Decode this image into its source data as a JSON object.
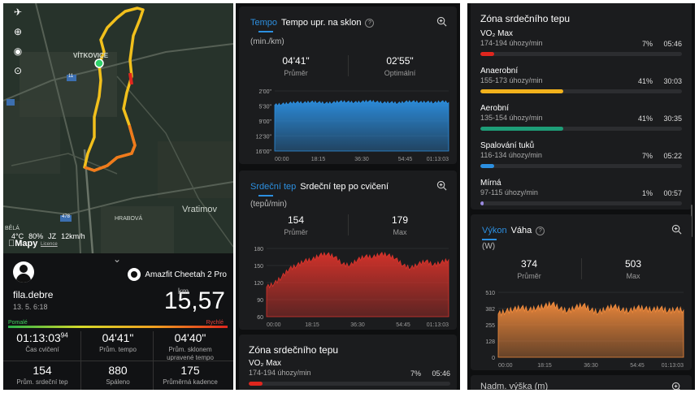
{
  "left": {
    "map": {
      "labels": [
        "VÍTKOVICE",
        "Vratimov",
        "HRABOVÁ",
        "BĚLÁ"
      ],
      "road_numbers": [
        "11",
        "478"
      ],
      "weather": {
        "temp": "4°C",
        "humidity": "80%",
        "wind_dir": "JZ",
        "wind_speed": "12km/h"
      },
      "maps_brand": "Mapy",
      "legal": "Licence"
    },
    "user": {
      "name": "fila.debre",
      "date": "13. 5. 6:18"
    },
    "device": "Amazfit Cheetah 2 Pro",
    "distance": {
      "value": "15,57",
      "unit": "km"
    },
    "speed_scale": {
      "slow": "Pomalé",
      "fast": "Rychlé"
    },
    "stats": [
      {
        "value": "01:13:03",
        "sup": "94",
        "label": "Čas cvičení"
      },
      {
        "value": "04'41\"",
        "label": "Prům. tempo"
      },
      {
        "value": "04'40\"",
        "label": "Prům. sklonem upravené tempo"
      },
      {
        "value": "154",
        "label": "Prům. srdeční tep"
      },
      {
        "value": "880",
        "label": "Spáleno"
      },
      {
        "value": "175",
        "label": "Průměrná kadence"
      }
    ]
  },
  "pace_card": {
    "tab_active": "Tempo",
    "tab_inactive": "Tempo upr. na sklon",
    "unit": "(min./km)",
    "avg": {
      "value": "04'41\"",
      "label": "Průměr"
    },
    "opt": {
      "value": "02'55\"",
      "label": "Optimální"
    }
  },
  "hr_card": {
    "tab_active": "Srdeční tep",
    "tab_inactive": "Srdeční tep po cvičení",
    "unit": "(tepů/min)",
    "avg": {
      "value": "154",
      "label": "Průměr"
    },
    "max": {
      "value": "179",
      "label": "Max"
    }
  },
  "zones_mid": {
    "title": "Zóna srdečního tepu",
    "first": {
      "name": "VO₂ Max",
      "range": "174-194 úhozy/min",
      "pct": "7%",
      "time": "05:46"
    }
  },
  "zones": {
    "title": "Zóna srdečního tepu",
    "items": [
      {
        "name": "VO₂ Max",
        "range": "174-194 úhozy/min",
        "pct": "7%",
        "time": "05:46",
        "color": "#e0261e",
        "fill": 0.07
      },
      {
        "name": "Anaerobní",
        "range": "155-173 úhozy/min",
        "pct": "41%",
        "time": "30:03",
        "color": "#f2b21c",
        "fill": 0.41
      },
      {
        "name": "Aerobní",
        "range": "135-154 úhozy/min",
        "pct": "41%",
        "time": "30:35",
        "color": "#1e9e78",
        "fill": 0.41
      },
      {
        "name": "Spalování tuků",
        "range": "116-134 úhozy/min",
        "pct": "7%",
        "time": "05:22",
        "color": "#2c8fe0",
        "fill": 0.07
      },
      {
        "name": "Mírná",
        "range": "97-115 úhozy/min",
        "pct": "1%",
        "time": "00:57",
        "color": "#9a8ae0",
        "fill": 0.01
      }
    ]
  },
  "power_card": {
    "tab_active": "Výkon",
    "tab_inactive": "Váha",
    "unit": "(W)",
    "avg": {
      "value": "374",
      "label": "Průměr"
    },
    "max": {
      "value": "503",
      "label": "Max"
    }
  },
  "elevation_card": {
    "title": "Nadm. výška (m)"
  },
  "chart_data": [
    {
      "type": "area",
      "title": "Tempo",
      "ylabel": "(min./km)",
      "y_ticks": [
        "2'00\"",
        "5'30\"",
        "9'00\"",
        "12'30\"",
        "16'00\""
      ],
      "x_ticks": [
        "00:00",
        "18:15",
        "36:30",
        "54:45",
        "01:13:03"
      ],
      "color": "#2c8fe0",
      "series": [
        {
          "values": [
            5.3,
            5.1,
            4.9,
            4.7,
            4.8,
            4.6,
            4.7,
            4.9,
            4.8,
            4.5,
            4.6,
            4.7,
            4.6,
            4.4,
            4.6,
            4.8,
            4.7,
            4.9,
            4.6,
            4.5,
            4.7,
            4.6,
            4.8,
            4.5,
            4.7
          ]
        }
      ]
    },
    {
      "type": "area",
      "title": "Srdeční tep",
      "ylabel": "(tepů/min)",
      "y_ticks": [
        "180",
        "150",
        "120",
        "90",
        "60"
      ],
      "x_ticks": [
        "00:00",
        "18:15",
        "36:30",
        "54:45",
        "01:13:03"
      ],
      "color": "#d9332b",
      "series": [
        {
          "values": [
            112,
            118,
            130,
            144,
            150,
            158,
            160,
            168,
            170,
            165,
            152,
            150,
            160,
            166,
            164,
            170,
            168,
            162,
            150,
            145,
            152,
            158,
            150,
            155,
            160
          ]
        }
      ]
    },
    {
      "type": "area",
      "title": "Výkon",
      "ylabel": "(W)",
      "y_ticks": [
        "510",
        "382",
        "255",
        "128",
        "0"
      ],
      "x_ticks": [
        "00:00",
        "18:15",
        "36:30",
        "54:45",
        "01:13:03"
      ],
      "color": "#f08a3c",
      "series": [
        {
          "values": [
            340,
            360,
            375,
            390,
            370,
            385,
            400,
            420,
            380,
            360,
            390,
            410,
            370,
            350,
            380,
            400,
            370,
            360,
            390,
            380,
            370,
            385,
            360,
            375,
            370
          ]
        }
      ]
    }
  ]
}
